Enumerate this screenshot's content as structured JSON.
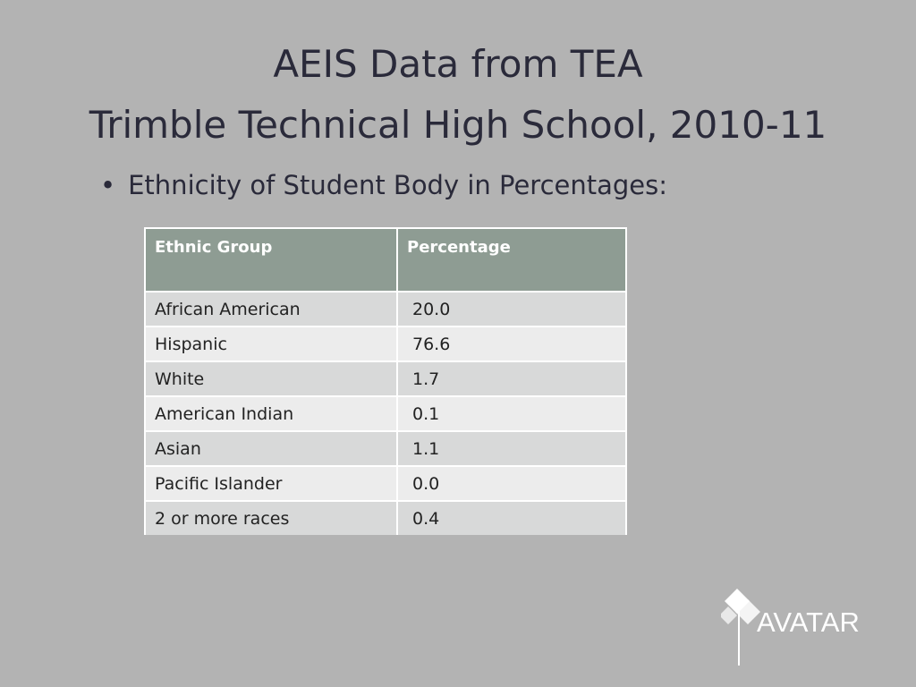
{
  "header": {
    "title_lines": [
      "AEIS Data from TEA",
      "Trimble Technical High School, 2010-11"
    ]
  },
  "bullet": "Ethnicity of Student Body in Percentages:",
  "table": {
    "columns": [
      "Ethnic  Group",
      "Percentage"
    ],
    "rows": [
      [
        "African American",
        "20.0"
      ],
      [
        "Hispanic",
        "76.6"
      ],
      [
        "White",
        "1.7"
      ],
      [
        "American Indian",
        "0.1"
      ],
      [
        "Asian",
        "1.1"
      ],
      [
        "Pacific Islander",
        "0.0"
      ],
      [
        "2 or more races",
        "0.4"
      ]
    ]
  },
  "logo": "AVATAR"
}
